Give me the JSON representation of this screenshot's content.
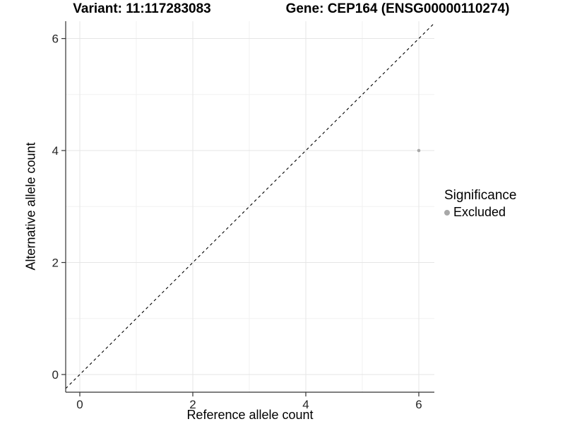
{
  "titles": {
    "variant": "Variant: 11:117283083",
    "gene": "Gene: CEP164 (ENSG00000110274)"
  },
  "axes": {
    "x_label": "Reference allele count",
    "y_label": "Alternative allele count"
  },
  "legend": {
    "title": "Significance",
    "items": [
      {
        "label": "Excluded",
        "color": "#a8a8a8"
      }
    ]
  },
  "colors": {
    "background": "#ffffff",
    "point": "#a8a8a8",
    "identity_line": "#000000",
    "grid_major": "#e5e5e5",
    "grid_minor": "#f1f1f1",
    "axis_line": "#333333",
    "tick_text": "#262626"
  },
  "chart_data": {
    "type": "scatter",
    "title": "Variant: 11:117283083 | Gene: CEP164 (ENSG00000110274)",
    "xlabel": "Reference allele count",
    "ylabel": "Alternative allele count",
    "x_ticks": [
      0,
      2,
      4,
      6
    ],
    "y_ticks": [
      0,
      2,
      4,
      6
    ],
    "x_minor_ticks": [
      1,
      3,
      5
    ],
    "y_minor_ticks": [
      1,
      3,
      5
    ],
    "xlim": [
      -0.25,
      6.275
    ],
    "ylim": [
      -0.316,
      6.31
    ],
    "grid": true,
    "legend_position": "right",
    "legend_title": "Significance",
    "series": [
      {
        "name": "Excluded",
        "color": "#a8a8a8",
        "points": [
          {
            "x": 6,
            "y": 4
          }
        ]
      }
    ],
    "identity_line": {
      "slope": 1,
      "intercept": 0,
      "style": "dashed"
    }
  }
}
